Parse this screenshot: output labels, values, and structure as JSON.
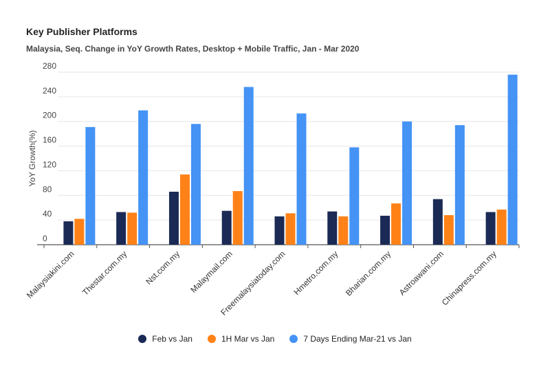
{
  "chart_data": {
    "type": "bar",
    "title": "Key Publisher Platforms",
    "subtitle": "Malaysia, Seq. Change in YoY Growth Rates, Desktop + Mobile Traffic, Jan - Mar 2020",
    "xlabel": "",
    "ylabel": "YoY Growth(%)",
    "ylim": [
      0,
      280
    ],
    "yticks": [
      0,
      40,
      80,
      120,
      160,
      200,
      240,
      280
    ],
    "grid": true,
    "legend_position": "bottom",
    "categories": [
      "Malaysiakini.com",
      "Thestar.com.my",
      "Nst.com.my",
      "Malaymail.com",
      "Freemalaysiatoday.com",
      "Hmetro.com.my",
      "Bharian.com.my",
      "Astroawani.com",
      "Chinapress.com.my"
    ],
    "series": [
      {
        "name": "Feb vs Jan",
        "color": "#1b2a55",
        "values": [
          38,
          53,
          86,
          55,
          46,
          54,
          47,
          74,
          53
        ]
      },
      {
        "name": "1H Mar vs Jan",
        "color": "#ff8219",
        "values": [
          42,
          52,
          114,
          87,
          51,
          46,
          67,
          48,
          57
        ]
      },
      {
        "name": "7 Days Ending Mar-21 vs Jan",
        "color": "#4493f5",
        "values": [
          191,
          218,
          196,
          256,
          213,
          158,
          200,
          194,
          276
        ]
      }
    ]
  }
}
